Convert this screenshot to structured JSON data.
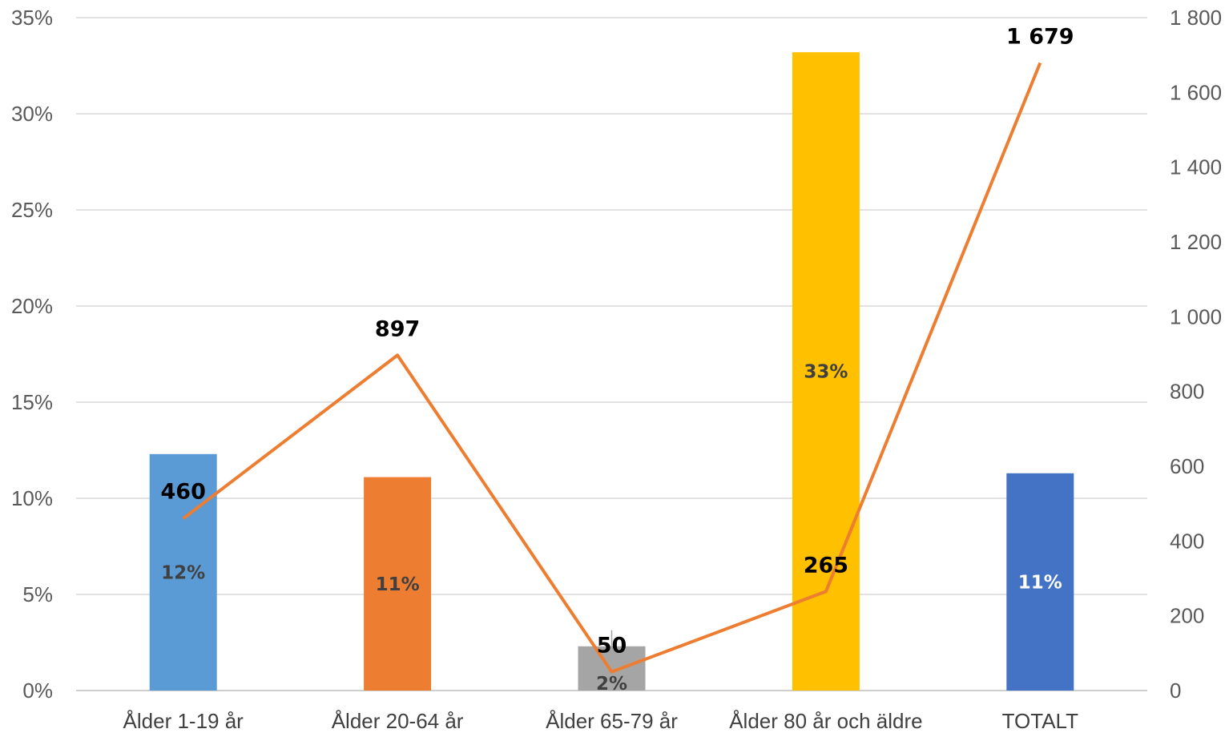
{
  "chart_data": {
    "type": "bar",
    "categories": [
      "Ålder 1-19 år",
      "Ålder 20-64 år",
      "Ålder 65-79 år",
      "Ålder 80 år och äldre",
      "TOTALT"
    ],
    "bar_series": {
      "values": [
        12.3,
        11.1,
        2.3,
        33.2,
        11.3
      ],
      "labels": [
        "12%",
        "11%",
        "2%",
        "33%",
        "11%"
      ],
      "colors": [
        "#5b9bd5",
        "#ed7d31",
        "#a5a5a5",
        "#ffc000",
        "#4472c4"
      ],
      "label_colors": [
        "#404040",
        "#404040",
        "#404040",
        "#404040",
        "#ffffff"
      ]
    },
    "line_series": {
      "type": "line",
      "axis": "right",
      "values": [
        460,
        897,
        50,
        265,
        1679
      ],
      "labels": [
        "460",
        "897",
        "50",
        "265",
        "1 679"
      ],
      "color": "#ed7d31"
    },
    "y_left": {
      "min": 0,
      "max": 35,
      "ticks": [
        "0%",
        "5%",
        "10%",
        "15%",
        "20%",
        "25%",
        "30%",
        "35%"
      ]
    },
    "y_right": {
      "min": 0,
      "max": 1800,
      "ticks": [
        "0",
        "200",
        "400",
        "600",
        "800",
        "1 000",
        "1 200",
        "1 400",
        "1 600",
        "1 800"
      ]
    },
    "grid": true,
    "legend": "none"
  }
}
